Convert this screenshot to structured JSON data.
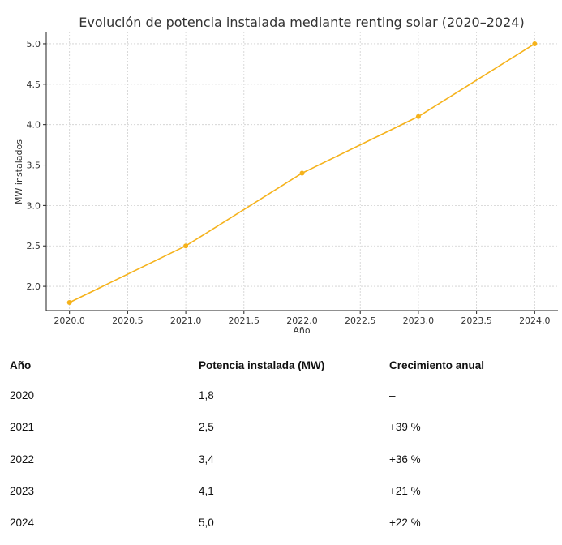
{
  "chart_data": {
    "type": "line",
    "title": "Evolución de potencia instalada mediante renting solar (2020–2024)",
    "xlabel": "Año",
    "ylabel": "MW instalados",
    "x": [
      2020,
      2021,
      2022,
      2023,
      2024
    ],
    "series": [
      {
        "values": [
          1.8,
          2.5,
          3.4,
          4.1,
          5.0
        ],
        "color": "#f5b21b"
      }
    ],
    "xlim": [
      2019.8,
      2024.2
    ],
    "ylim": [
      1.7,
      5.15
    ],
    "xticks": [
      "2020.0",
      "2020.5",
      "2021.0",
      "2021.5",
      "2022.0",
      "2022.5",
      "2023.0",
      "2023.5",
      "2024.0"
    ],
    "yticks": [
      "2.0",
      "2.5",
      "3.0",
      "3.5",
      "4.0",
      "4.5",
      "5.0"
    ],
    "grid": true
  },
  "table": {
    "headers": [
      "Año",
      "Potencia instalada (MW)",
      "Crecimiento anual"
    ],
    "rows": [
      [
        "2020",
        "1,8",
        "–"
      ],
      [
        "2021",
        "2,5",
        "+39 %"
      ],
      [
        "2022",
        "3,4",
        "+36 %"
      ],
      [
        "2023",
        "4,1",
        "+21 %"
      ],
      [
        "2024",
        "5,0",
        "+22 %"
      ]
    ]
  }
}
